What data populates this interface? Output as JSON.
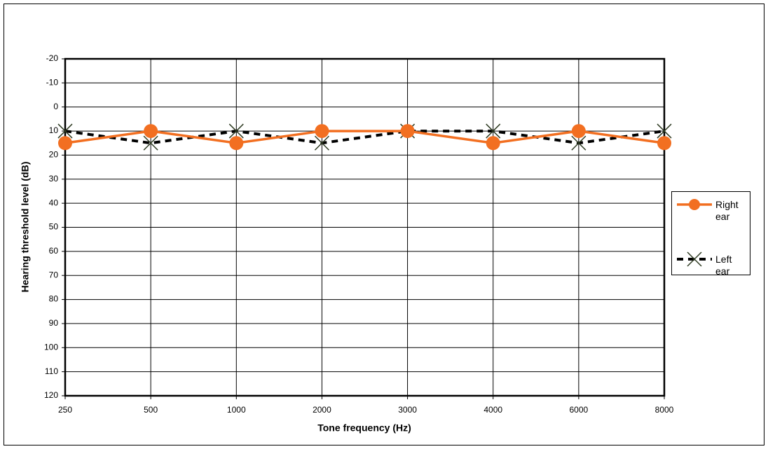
{
  "chart_data": {
    "type": "line",
    "x_label": "Tone frequency (Hz)",
    "y_label": "Hearing threshold level (dB)",
    "categories": [
      "250",
      "500",
      "1000",
      "2000",
      "3000",
      "4000",
      "6000",
      "8000"
    ],
    "series": [
      {
        "name": "Right ear",
        "color": "#f26f21",
        "marker": "circle",
        "dash": false,
        "values": [
          15,
          10,
          15,
          10,
          10,
          15,
          10,
          15
        ]
      },
      {
        "name": "Left ear",
        "color": "#000000",
        "marker": "x",
        "dash": true,
        "values": [
          10,
          15,
          10,
          15,
          10,
          10,
          15,
          10
        ]
      }
    ],
    "ylim": [
      120,
      -20
    ],
    "yticks": [
      -20,
      -10,
      0,
      10,
      20,
      30,
      40,
      50,
      60,
      70,
      80,
      90,
      100,
      110,
      120
    ],
    "grid": true,
    "legend": "right"
  }
}
